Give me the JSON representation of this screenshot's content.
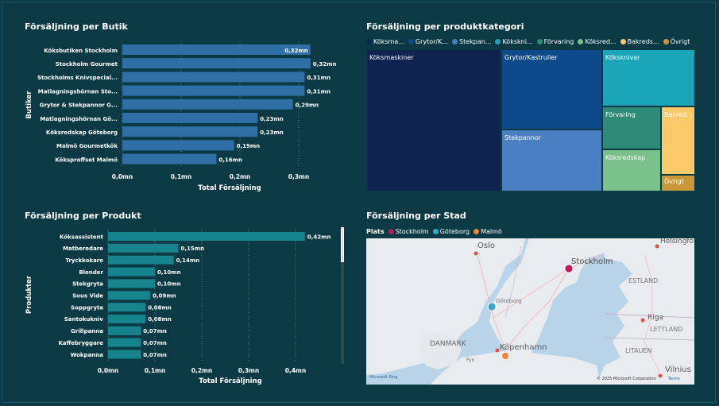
{
  "colors": {
    "background": "#0b3a45",
    "bar_store": "#2f6fa6",
    "bar_product": "#17838c",
    "stockholm": "#c2185b",
    "goteborg": "#3aa5c9",
    "malmo": "#f0883a"
  },
  "store_chart": {
    "title": "Försäljning per Butik",
    "chart_data": {
      "type": "bar",
      "orientation": "horizontal",
      "categories": [
        "Köksbutiken Stockholm",
        "Stockholm Gourmet",
        "Stockholms Knivspecial...",
        "Matlagningshörnan Sto...",
        "Grytor & Stekpannor G...",
        "Matlagningshörnan Gö...",
        "Köksredskap Göteborg",
        "Malmö Gourmetkök",
        "Köksproffset Malmö"
      ],
      "values": [
        0.32,
        0.32,
        0.31,
        0.31,
        0.29,
        0.23,
        0.23,
        0.19,
        0.16
      ],
      "data_labels": [
        "0,32mn",
        "0,32mn",
        "0,31mn",
        "0,31mn",
        "0,29mn",
        "0,23mn",
        "0,23mn",
        "0,19mn",
        "0,16mn"
      ],
      "xlabel": "Total Försäljning",
      "ylabel": "Butiker",
      "xlim": [
        0,
        0.34
      ],
      "xticks": [
        0,
        0.1,
        0.2,
        0.3
      ],
      "xtick_labels": [
        "0,0mn",
        "0,1mn",
        "0,2mn",
        "0,3mn"
      ],
      "grid": true
    }
  },
  "product_chart": {
    "title": "Försäljning per Produkt",
    "chart_data": {
      "type": "bar",
      "orientation": "horizontal",
      "categories": [
        "Köksassistent",
        "Matberedare",
        "Tryckkokare",
        "Blender",
        "Stekgryta",
        "Sous Vide",
        "Soppgryta",
        "Santokukniv",
        "Grillpanna",
        "Kaffebryggare",
        "Wokpanna"
      ],
      "values": [
        0.42,
        0.15,
        0.14,
        0.1,
        0.1,
        0.09,
        0.08,
        0.08,
        0.07,
        0.07,
        0.07
      ],
      "data_labels": [
        "0,42mn",
        "0,15mn",
        "0,14mn",
        "0,10mn",
        "0,10mn",
        "0,09mn",
        "0,08mn",
        "0,08mn",
        "0,07mn",
        "0,07mn",
        "0,07mn"
      ],
      "xlabel": "Total Försäljning",
      "ylabel": "Produkter",
      "xlim": [
        0,
        0.46
      ],
      "xticks": [
        0,
        0.1,
        0.2,
        0.3,
        0.4
      ],
      "xtick_labels": [
        "0,0mn",
        "0,1mn",
        "0,2mn",
        "0,3mn",
        "0,4mn"
      ],
      "grid": true
    }
  },
  "treemap": {
    "title": "Försäljning per produktkategori",
    "legend": [
      "Köksma...",
      "Grytor/K...",
      "Stekpan...",
      "Kökskni...",
      "Förvaring",
      "Köksred...",
      "Bakreds...",
      "Övrigt"
    ],
    "chart_data": {
      "type": "treemap",
      "categories": [
        "Köksmaskiner",
        "Grytor/Kastruller",
        "Stekpannor",
        "Köksknivar",
        "Förvaring",
        "Köksredskap",
        "Bakred...",
        "Övrigt"
      ],
      "colors": [
        "#0f2350",
        "#0e4a8a",
        "#4a7fc1",
        "#1aa6b8",
        "#2f8a77",
        "#7ac08a",
        "#f9c96a",
        "#c9983a"
      ]
    }
  },
  "map": {
    "title": "Försäljning per Stad",
    "legend_label": "Plats",
    "legend": [
      {
        "name": "Stockholm",
        "color": "#c2185b"
      },
      {
        "name": "Göteborg",
        "color": "#3aa5c9"
      },
      {
        "name": "Malmö",
        "color": "#f0883a"
      }
    ],
    "labels": [
      "Oslo",
      "Stockholm",
      "Helsingfors",
      "ESTLAND",
      "Riga",
      "LETTLAND",
      "Göteborg",
      "DANMARK",
      "Köpenhamn",
      "LITAUEN",
      "Vilnius",
      "Fyn"
    ],
    "attribution": "© 2025 Microsoft Corporation",
    "terms": "Terms",
    "bing": "Microsoft Bing"
  }
}
